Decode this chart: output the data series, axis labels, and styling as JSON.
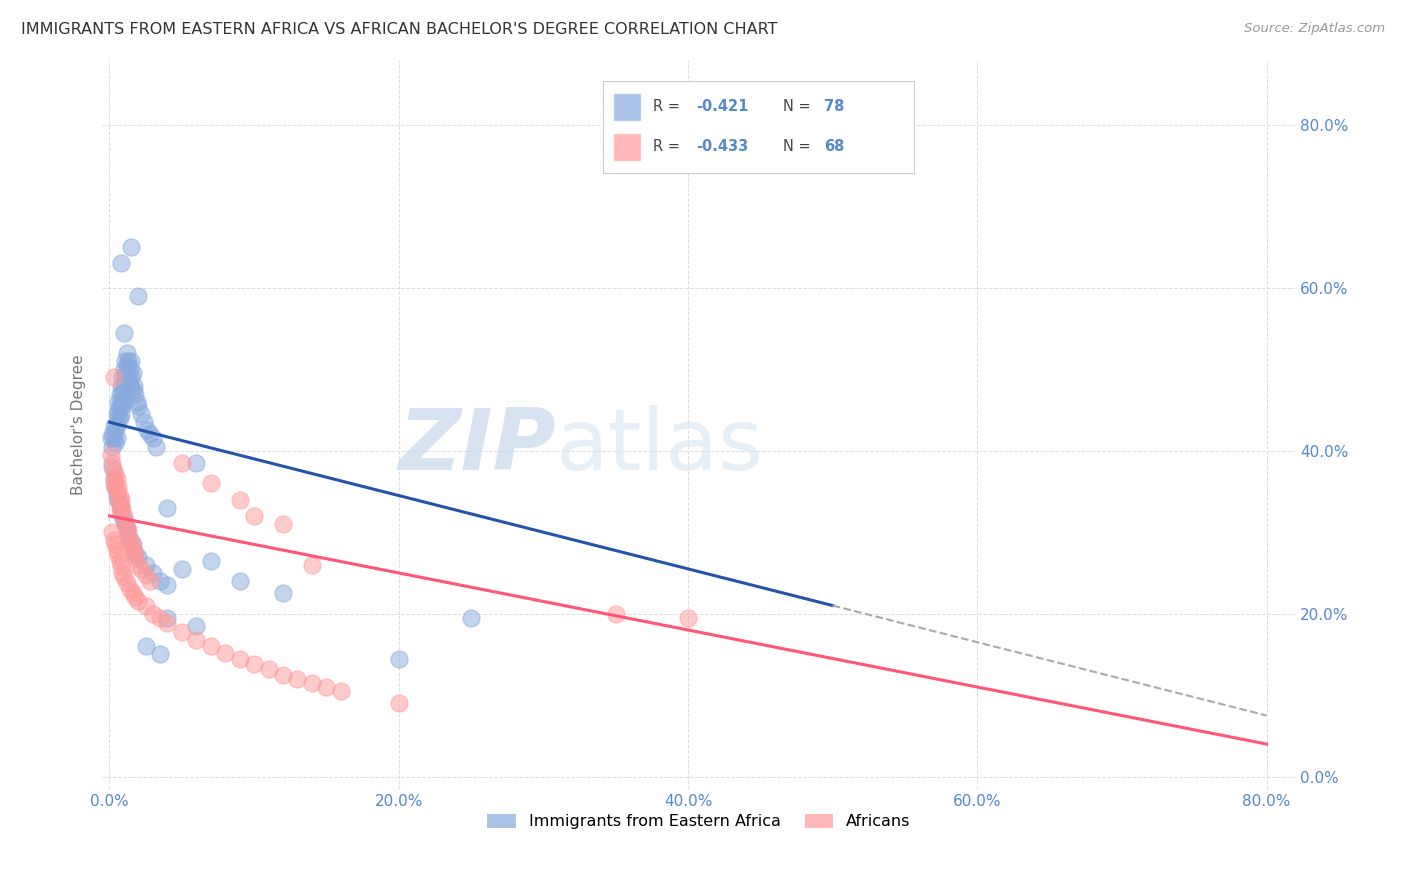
{
  "title": "IMMIGRANTS FROM EASTERN AFRICA VS AFRICAN BACHELOR'S DEGREE CORRELATION CHART",
  "source": "Source: ZipAtlas.com",
  "ylabel": "Bachelor's Degree",
  "right_ytick_labels": [
    "0.0%",
    "20.0%",
    "40.0%",
    "60.0%",
    "80.0%"
  ],
  "right_ytick_values": [
    0.0,
    0.2,
    0.4,
    0.6,
    0.8
  ],
  "xtick_labels": [
    "0.0%",
    "20.0%",
    "40.0%",
    "60.0%",
    "80.0%"
  ],
  "xtick_values": [
    0.0,
    0.2,
    0.4,
    0.6,
    0.8
  ],
  "xlim": [
    -0.005,
    0.82
  ],
  "ylim": [
    -0.015,
    0.88
  ],
  "legend_blue_label": "Immigrants from Eastern Africa",
  "legend_pink_label": "Africans",
  "blue_scatter": [
    [
      0.001,
      0.415
    ],
    [
      0.002,
      0.42
    ],
    [
      0.002,
      0.405
    ],
    [
      0.003,
      0.43
    ],
    [
      0.003,
      0.415
    ],
    [
      0.004,
      0.425
    ],
    [
      0.004,
      0.41
    ],
    [
      0.005,
      0.445
    ],
    [
      0.005,
      0.43
    ],
    [
      0.005,
      0.415
    ],
    [
      0.006,
      0.46
    ],
    [
      0.006,
      0.45
    ],
    [
      0.006,
      0.44
    ],
    [
      0.007,
      0.47
    ],
    [
      0.007,
      0.455
    ],
    [
      0.007,
      0.44
    ],
    [
      0.008,
      0.48
    ],
    [
      0.008,
      0.46
    ],
    [
      0.008,
      0.445
    ],
    [
      0.009,
      0.49
    ],
    [
      0.009,
      0.47
    ],
    [
      0.009,
      0.455
    ],
    [
      0.01,
      0.5
    ],
    [
      0.01,
      0.48
    ],
    [
      0.01,
      0.46
    ],
    [
      0.011,
      0.51
    ],
    [
      0.011,
      0.49
    ],
    [
      0.012,
      0.52
    ],
    [
      0.012,
      0.505
    ],
    [
      0.012,
      0.485
    ],
    [
      0.013,
      0.51
    ],
    [
      0.013,
      0.49
    ],
    [
      0.014,
      0.5
    ],
    [
      0.014,
      0.48
    ],
    [
      0.015,
      0.51
    ],
    [
      0.015,
      0.49
    ],
    [
      0.016,
      0.495
    ],
    [
      0.016,
      0.475
    ],
    [
      0.017,
      0.48
    ],
    [
      0.018,
      0.47
    ],
    [
      0.019,
      0.46
    ],
    [
      0.02,
      0.455
    ],
    [
      0.022,
      0.445
    ],
    [
      0.024,
      0.435
    ],
    [
      0.026,
      0.425
    ],
    [
      0.028,
      0.42
    ],
    [
      0.03,
      0.415
    ],
    [
      0.032,
      0.405
    ],
    [
      0.002,
      0.38
    ],
    [
      0.003,
      0.365
    ],
    [
      0.004,
      0.355
    ],
    [
      0.005,
      0.345
    ],
    [
      0.006,
      0.34
    ],
    [
      0.007,
      0.335
    ],
    [
      0.008,
      0.33
    ],
    [
      0.009,
      0.32
    ],
    [
      0.01,
      0.315
    ],
    [
      0.011,
      0.31
    ],
    [
      0.012,
      0.305
    ],
    [
      0.013,
      0.295
    ],
    [
      0.014,
      0.29
    ],
    [
      0.016,
      0.285
    ],
    [
      0.018,
      0.275
    ],
    [
      0.02,
      0.27
    ],
    [
      0.025,
      0.26
    ],
    [
      0.03,
      0.25
    ],
    [
      0.035,
      0.24
    ],
    [
      0.04,
      0.235
    ],
    [
      0.008,
      0.63
    ],
    [
      0.015,
      0.65
    ],
    [
      0.02,
      0.59
    ],
    [
      0.01,
      0.545
    ],
    [
      0.06,
      0.385
    ],
    [
      0.04,
      0.33
    ],
    [
      0.05,
      0.255
    ],
    [
      0.07,
      0.265
    ],
    [
      0.09,
      0.24
    ],
    [
      0.12,
      0.225
    ],
    [
      0.04,
      0.195
    ],
    [
      0.06,
      0.185
    ],
    [
      0.025,
      0.16
    ],
    [
      0.035,
      0.15
    ],
    [
      0.2,
      0.145
    ],
    [
      0.25,
      0.195
    ]
  ],
  "pink_scatter": [
    [
      0.001,
      0.395
    ],
    [
      0.002,
      0.385
    ],
    [
      0.003,
      0.375
    ],
    [
      0.003,
      0.36
    ],
    [
      0.004,
      0.37
    ],
    [
      0.004,
      0.355
    ],
    [
      0.005,
      0.365
    ],
    [
      0.005,
      0.35
    ],
    [
      0.006,
      0.355
    ],
    [
      0.006,
      0.34
    ],
    [
      0.007,
      0.345
    ],
    [
      0.007,
      0.33
    ],
    [
      0.008,
      0.34
    ],
    [
      0.008,
      0.325
    ],
    [
      0.009,
      0.33
    ],
    [
      0.01,
      0.32
    ],
    [
      0.011,
      0.31
    ],
    [
      0.012,
      0.305
    ],
    [
      0.013,
      0.3
    ],
    [
      0.014,
      0.29
    ],
    [
      0.015,
      0.285
    ],
    [
      0.016,
      0.28
    ],
    [
      0.017,
      0.275
    ],
    [
      0.018,
      0.268
    ],
    [
      0.02,
      0.26
    ],
    [
      0.022,
      0.255
    ],
    [
      0.025,
      0.248
    ],
    [
      0.028,
      0.24
    ],
    [
      0.002,
      0.3
    ],
    [
      0.003,
      0.29
    ],
    [
      0.004,
      0.285
    ],
    [
      0.005,
      0.278
    ],
    [
      0.006,
      0.272
    ],
    [
      0.007,
      0.265
    ],
    [
      0.008,
      0.258
    ],
    [
      0.009,
      0.25
    ],
    [
      0.01,
      0.245
    ],
    [
      0.012,
      0.238
    ],
    [
      0.014,
      0.23
    ],
    [
      0.016,
      0.225
    ],
    [
      0.018,
      0.22
    ],
    [
      0.02,
      0.215
    ],
    [
      0.025,
      0.21
    ],
    [
      0.03,
      0.2
    ],
    [
      0.035,
      0.195
    ],
    [
      0.04,
      0.188
    ],
    [
      0.05,
      0.178
    ],
    [
      0.06,
      0.168
    ],
    [
      0.07,
      0.16
    ],
    [
      0.08,
      0.152
    ],
    [
      0.09,
      0.145
    ],
    [
      0.1,
      0.138
    ],
    [
      0.11,
      0.132
    ],
    [
      0.12,
      0.125
    ],
    [
      0.13,
      0.12
    ],
    [
      0.14,
      0.115
    ],
    [
      0.15,
      0.11
    ],
    [
      0.16,
      0.105
    ],
    [
      0.2,
      0.09
    ],
    [
      0.003,
      0.49
    ],
    [
      0.05,
      0.385
    ],
    [
      0.07,
      0.36
    ],
    [
      0.09,
      0.34
    ],
    [
      0.1,
      0.32
    ],
    [
      0.12,
      0.31
    ],
    [
      0.14,
      0.26
    ],
    [
      0.35,
      0.2
    ],
    [
      0.4,
      0.195
    ]
  ],
  "blue_line": [
    [
      0.0,
      0.435
    ],
    [
      0.5,
      0.21
    ]
  ],
  "blue_dashed_line": [
    [
      0.5,
      0.21
    ],
    [
      0.8,
      0.075
    ]
  ],
  "pink_line": [
    [
      0.0,
      0.32
    ],
    [
      0.8,
      0.04
    ]
  ],
  "blue_color": "#88AADD",
  "pink_color": "#FF9999",
  "blue_line_color": "#2255AA",
  "pink_line_color": "#FF5577",
  "dashed_line_color": "#AAAAAA",
  "background_color": "#FFFFFF",
  "grid_color": "#DDDDDD",
  "title_color": "#333333",
  "right_axis_color": "#5588CC",
  "accent_color": "#5588CC"
}
